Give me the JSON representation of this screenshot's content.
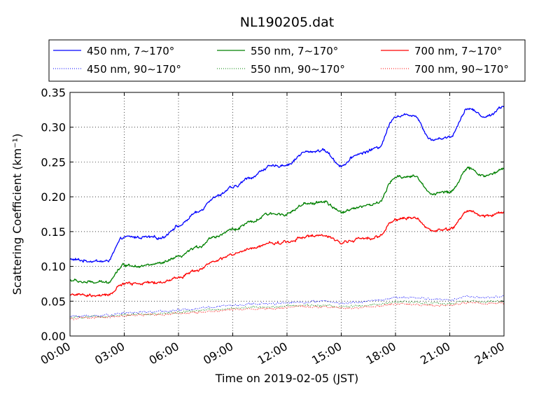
{
  "chart_data": {
    "type": "line",
    "title": "NL190205.dat",
    "xlabel": "Time on 2019-02-05 (JST)",
    "ylabel": "Scattering Coefficient (km⁻¹)",
    "xlim": [
      "00:00",
      "24:00"
    ],
    "ylim": [
      0.0,
      0.35
    ],
    "grid": true,
    "legend_position": "top",
    "x_ticks": [
      "00:00",
      "03:00",
      "06:00",
      "09:00",
      "12:00",
      "15:00",
      "18:00",
      "21:00",
      "24:00"
    ],
    "y_ticks": [
      "0.00",
      "0.05",
      "0.10",
      "0.15",
      "0.20",
      "0.25",
      "0.30",
      "0.35"
    ],
    "x": [
      "00:00",
      "01:00",
      "02:00",
      "03:00",
      "04:00",
      "05:00",
      "06:00",
      "07:00",
      "08:00",
      "09:00",
      "10:00",
      "11:00",
      "12:00",
      "13:00",
      "14:00",
      "15:00",
      "16:00",
      "17:00",
      "18:00",
      "19:00",
      "20:00",
      "21:00",
      "22:00",
      "23:00",
      "24:00"
    ],
    "series": [
      {
        "name": "450 nm, 7∼170°",
        "color": "#0000ff",
        "style": "solid",
        "values": [
          0.11,
          0.108,
          0.107,
          0.142,
          0.142,
          0.141,
          0.158,
          0.177,
          0.2,
          0.213,
          0.228,
          0.243,
          0.246,
          0.264,
          0.267,
          0.245,
          0.262,
          0.27,
          0.316,
          0.318,
          0.282,
          0.286,
          0.327,
          0.315,
          0.33
        ]
      },
      {
        "name": "450 nm, 90∼170°",
        "color": "#0000ff",
        "style": "dotted",
        "values": [
          0.028,
          0.029,
          0.03,
          0.033,
          0.034,
          0.035,
          0.037,
          0.04,
          0.042,
          0.044,
          0.046,
          0.047,
          0.048,
          0.049,
          0.05,
          0.047,
          0.049,
          0.051,
          0.055,
          0.055,
          0.053,
          0.052,
          0.057,
          0.055,
          0.057
        ]
      },
      {
        "name": "550 nm, 7∼170°",
        "color": "#008000",
        "style": "solid",
        "values": [
          0.08,
          0.077,
          0.077,
          0.102,
          0.101,
          0.104,
          0.113,
          0.127,
          0.143,
          0.153,
          0.163,
          0.175,
          0.176,
          0.189,
          0.193,
          0.178,
          0.186,
          0.19,
          0.228,
          0.23,
          0.205,
          0.207,
          0.24,
          0.23,
          0.24
        ]
      },
      {
        "name": "550 nm, 90∼170°",
        "color": "#008000",
        "style": "dotted",
        "values": [
          0.026,
          0.027,
          0.028,
          0.03,
          0.031,
          0.032,
          0.034,
          0.036,
          0.038,
          0.04,
          0.041,
          0.042,
          0.043,
          0.044,
          0.044,
          0.042,
          0.043,
          0.045,
          0.049,
          0.049,
          0.047,
          0.046,
          0.05,
          0.049,
          0.05
        ]
      },
      {
        "name": "700 nm, 7∼170°",
        "color": "#ff0000",
        "style": "solid",
        "values": [
          0.06,
          0.058,
          0.058,
          0.075,
          0.076,
          0.077,
          0.084,
          0.095,
          0.107,
          0.117,
          0.125,
          0.133,
          0.135,
          0.143,
          0.144,
          0.135,
          0.139,
          0.142,
          0.168,
          0.17,
          0.152,
          0.153,
          0.18,
          0.172,
          0.178
        ]
      },
      {
        "name": "700 nm, 90∼170°",
        "color": "#ff0000",
        "style": "dotted",
        "values": [
          0.025,
          0.026,
          0.027,
          0.029,
          0.03,
          0.031,
          0.032,
          0.034,
          0.036,
          0.038,
          0.039,
          0.04,
          0.041,
          0.042,
          0.042,
          0.04,
          0.041,
          0.043,
          0.046,
          0.046,
          0.044,
          0.044,
          0.048,
          0.047,
          0.048
        ]
      }
    ]
  }
}
